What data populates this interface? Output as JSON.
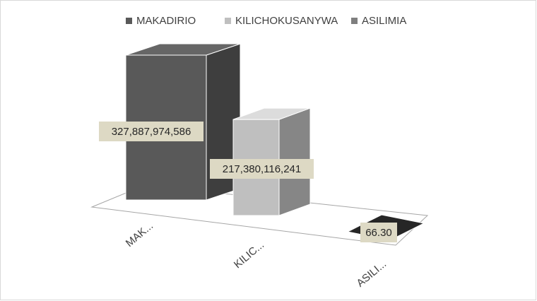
{
  "chart_data": {
    "type": "bar3d",
    "categories": [
      "MAK...",
      "KILIC...",
      "ASILI..."
    ],
    "series": [
      {
        "name": "MAKADIRIO",
        "color": "#595959",
        "values": [
          327887974586,
          null,
          null
        ],
        "value_labels": [
          "327,887,974,586",
          null,
          null
        ]
      },
      {
        "name": "KILICHOKUSANYWA",
        "color": "#bfbfbf",
        "values": [
          null,
          217380116241,
          null
        ],
        "value_labels": [
          null,
          "217,380,116,241",
          null
        ]
      },
      {
        "name": "ASILIMIA",
        "color": "#7f7f7f",
        "values": [
          null,
          null,
          66.3
        ],
        "value_labels": [
          null,
          null,
          "66.30"
        ]
      }
    ],
    "legend": "top"
  }
}
